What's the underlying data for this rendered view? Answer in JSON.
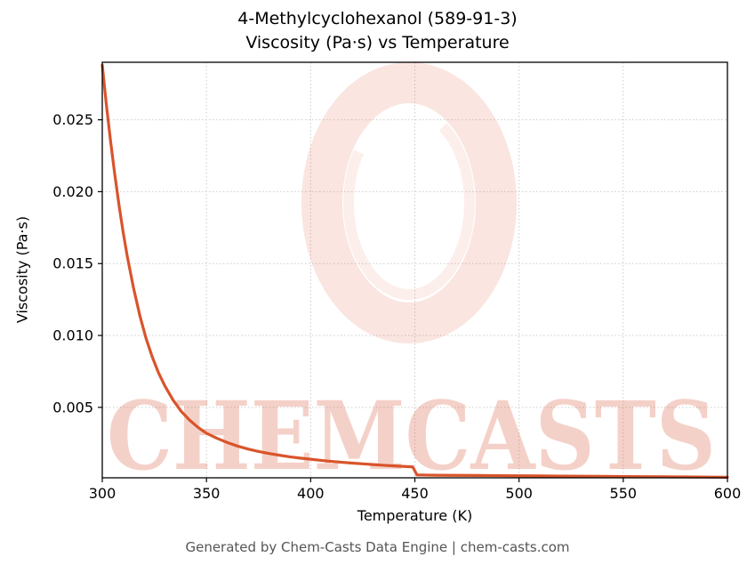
{
  "title": {
    "line1": "4-Methylcyclohexanol (589-91-3)",
    "line2": "Viscosity (Pa·s) vs Temperature"
  },
  "footer": "Generated by Chem-Casts Data Engine | chem-casts.com",
  "watermark": {
    "text": "CHEMCASTS",
    "text_color": "rgba(217, 90, 56, 0.28)",
    "logo_color": "rgba(222, 96, 62, 0.16)",
    "logo_inner_color": "rgba(222, 96, 62, 0.10)"
  },
  "chart_data": {
    "type": "line",
    "title": "4-Methylcyclohexanol (589-91-3)\nViscosity (Pa·s) vs Temperature",
    "xlabel": "Temperature (K)",
    "ylabel": "Viscosity (Pa·s)",
    "xlim": [
      300,
      600
    ],
    "ylim": [
      0.0001,
      0.029
    ],
    "xticks": [
      300,
      350,
      400,
      450,
      500,
      550,
      600
    ],
    "yticks": [
      0.005,
      0.01,
      0.015,
      0.02,
      0.025
    ],
    "grid": true,
    "legend": false,
    "line_color": "#d9542b",
    "grid_color": "#cccccc",
    "series": [
      {
        "name": "viscosity",
        "x": [
          300,
          302,
          304,
          306,
          308,
          310,
          312,
          315,
          318,
          321,
          324,
          327,
          330,
          334,
          338,
          342,
          346,
          350,
          355,
          360,
          365,
          370,
          375,
          380,
          385,
          390,
          395,
          400,
          405,
          410,
          415,
          420,
          425,
          430,
          435,
          440,
          445,
          449,
          451,
          455,
          460,
          470,
          480,
          490,
          500,
          510,
          520,
          530,
          540,
          550,
          560,
          570,
          580,
          590,
          600
        ],
        "y": [
          0.0288,
          0.026,
          0.0235,
          0.0212,
          0.0191,
          0.0172,
          0.0155,
          0.0133,
          0.0114,
          0.0098,
          0.0085,
          0.0074,
          0.0065,
          0.0055,
          0.0047,
          0.0041,
          0.0036,
          0.0032,
          0.00285,
          0.00255,
          0.0023,
          0.0021,
          0.00193,
          0.00179,
          0.00167,
          0.00156,
          0.00147,
          0.00139,
          0.00131,
          0.00124,
          0.00118,
          0.00112,
          0.00107,
          0.00102,
          0.00097,
          0.00093,
          0.00089,
          0.00086,
          0.0003,
          0.00029,
          0.00028,
          0.00027,
          0.00026,
          0.00025,
          0.00024,
          0.00023,
          0.00022,
          0.00021,
          0.0002,
          0.00019,
          0.00018,
          0.00017,
          0.00016,
          0.00015,
          0.00014
        ]
      }
    ]
  }
}
